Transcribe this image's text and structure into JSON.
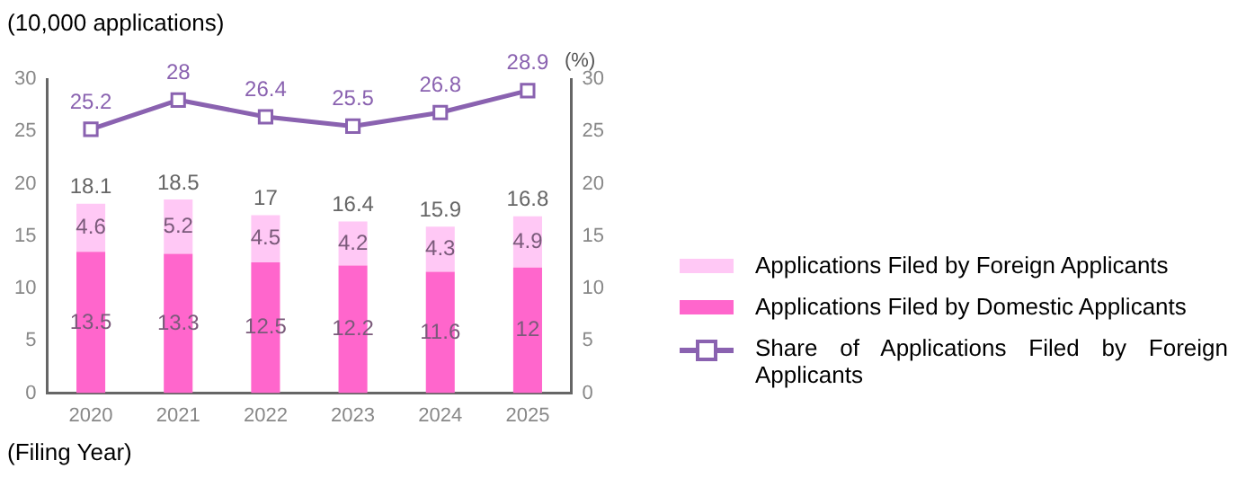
{
  "chart_data": {
    "type": "bar",
    "ylabel": "(10,000 applications)",
    "xlabel": "(Filing Year)",
    "y2label": "(%)",
    "categories": [
      "2020",
      "2021",
      "2022",
      "2023",
      "2024",
      "2025"
    ],
    "stacked": true,
    "series": [
      {
        "name": "Applications Filed by Domestic Applicants",
        "color": "#ff66cc",
        "values": [
          13.5,
          13.3,
          12.5,
          12.2,
          11.6,
          12
        ]
      },
      {
        "name": "Applications Filed by Foreign Applicants",
        "color": "#ffc8f5",
        "values": [
          4.6,
          5.2,
          4.5,
          4.2,
          4.3,
          4.9
        ]
      },
      {
        "name": "Share of Applications Filed by Foreign Applicants",
        "type": "line",
        "axis": "y2",
        "color": "#8a62b0",
        "values": [
          25.2,
          28,
          26.4,
          25.5,
          26.8,
          28.9
        ]
      }
    ],
    "totals": [
      "18.1",
      "18.5",
      "17",
      "16.4",
      "15.9",
      "16.8"
    ],
    "data_labels": true,
    "marker": "square",
    "grid": false,
    "legend": "right",
    "ylim": [
      0,
      30
    ],
    "yticks": [
      0,
      5,
      10,
      15,
      20,
      25,
      30
    ],
    "y2lim": [
      0,
      30
    ],
    "y2ticks": [
      0,
      5,
      10,
      15,
      20,
      25,
      30
    ]
  }
}
